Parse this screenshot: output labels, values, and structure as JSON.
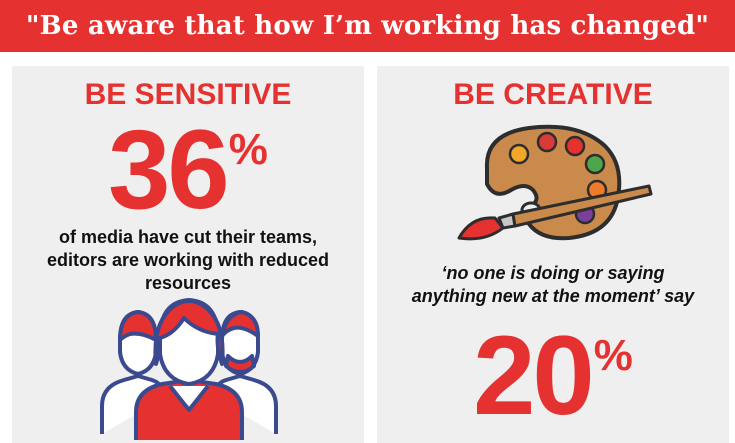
{
  "banner": {
    "title": "\"Be aware that how I’m working has changed\""
  },
  "left": {
    "heading": "BE SENSITIVE",
    "stat_number": "36",
    "stat_unit": "%",
    "description_lines": [
      "of media have cut their teams,",
      "editors are working with reduced",
      "resources"
    ],
    "icon": "people-group-icon"
  },
  "right": {
    "heading": "BE CREATIVE",
    "icon": "paint-palette-icon",
    "quote_lines": [
      "‘no one is doing or saying",
      "anything new at the moment’ say"
    ],
    "stat_number": "20",
    "stat_unit": "%"
  },
  "colors": {
    "accent": "#e5312f",
    "panel": "#efefef",
    "icon_outline": "#3b4a8f"
  }
}
